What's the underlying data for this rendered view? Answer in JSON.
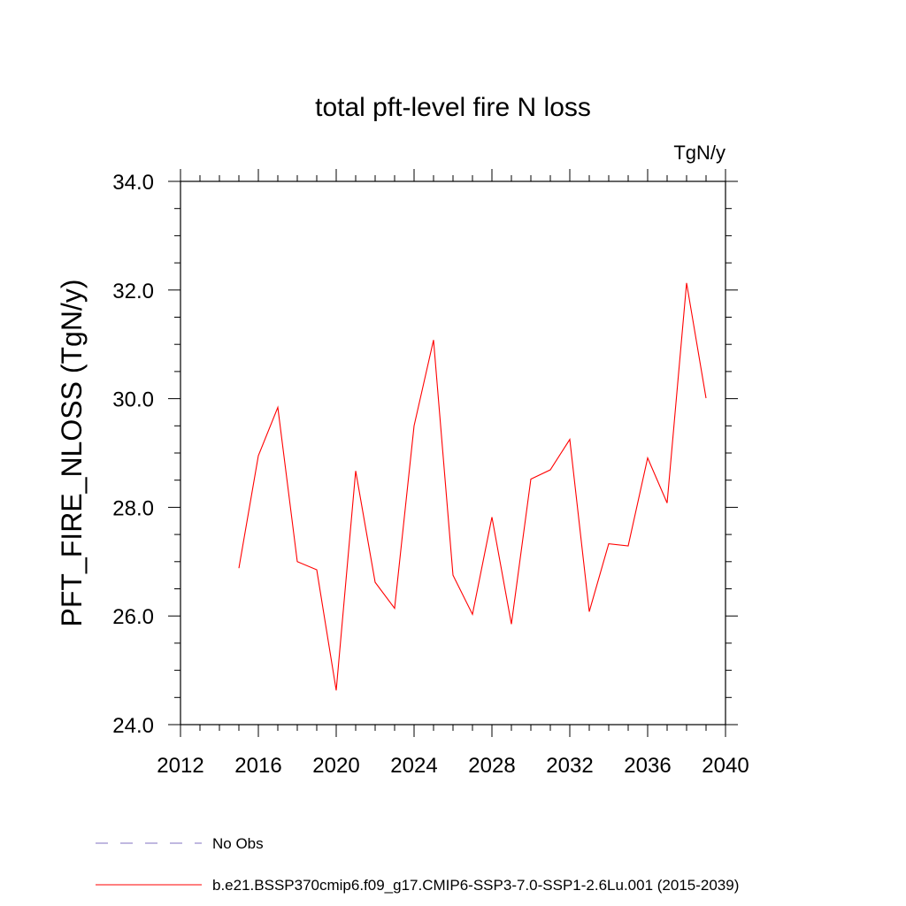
{
  "chart_data": {
    "type": "line",
    "title": "total pft-level fire N loss",
    "units": "TgN/y",
    "ylabel": "PFT_FIRE_NLOSS  (TgN/y)",
    "xlabel": "",
    "xlim": [
      2012,
      2040
    ],
    "ylim": [
      24.0,
      34.0
    ],
    "xticks": [
      2012,
      2016,
      2020,
      2024,
      2028,
      2032,
      2036,
      2040
    ],
    "xtick_labels": [
      "2012",
      "2016",
      "2020",
      "2024",
      "2028",
      "2032",
      "2036",
      "2040"
    ],
    "yticks": [
      24.0,
      26.0,
      28.0,
      30.0,
      32.0,
      34.0
    ],
    "ytick_labels": [
      "24.0",
      "26.0",
      "28.0",
      "30.0",
      "32.0",
      "34.0"
    ],
    "grid": false,
    "legend_position": "bottom-left",
    "series": [
      {
        "name": "b.e21.BSSP370cmip6.f09_g17.CMIP6-SSP3-7.0-SSP1-2.6Lu.001 (2015-2039)",
        "color": "#ff0000",
        "style": "solid",
        "x": [
          2015,
          2016,
          2017,
          2018,
          2019,
          2020,
          2021,
          2022,
          2023,
          2024,
          2025,
          2026,
          2027,
          2028,
          2029,
          2030,
          2031,
          2032,
          2033,
          2034,
          2035,
          2036,
          2037,
          2038,
          2039
        ],
        "y": [
          26.88,
          28.95,
          29.84,
          27.0,
          26.85,
          24.63,
          28.67,
          26.62,
          26.14,
          29.5,
          31.08,
          26.75,
          26.03,
          27.82,
          25.85,
          28.52,
          28.69,
          29.25,
          26.08,
          27.33,
          27.29,
          28.91,
          28.08,
          32.13,
          30.01
        ]
      }
    ],
    "legend": [
      {
        "label": "No Obs",
        "color": "#8070c0",
        "style": "dashed"
      },
      {
        "label": "b.e21.BSSP370cmip6.f09_g17.CMIP6-SSP3-7.0-SSP1-2.6Lu.001 (2015-2039)",
        "color": "#ff0000",
        "style": "solid"
      }
    ]
  }
}
